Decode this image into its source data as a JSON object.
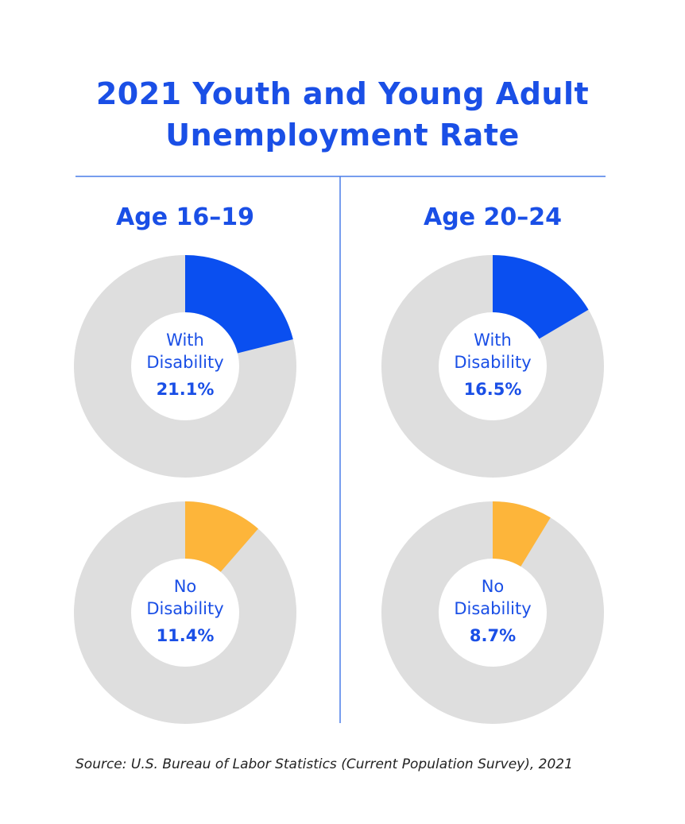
{
  "title": "2021 Youth and Young Adult Unemployment Rate",
  "columns": [
    "Age 16–19",
    "Age 20–24"
  ],
  "source": "Source: U.S. Bureau of Labor Statistics (Current Population Survey), 2021",
  "chart_data": [
    {
      "type": "pie",
      "label": "With Disability",
      "values": [
        21.1
      ],
      "value_labels": [
        "21.1%"
      ],
      "color": "#0a4ff0",
      "rest_color": "#dedede"
    },
    {
      "type": "pie",
      "label": "With Disability",
      "values": [
        16.5
      ],
      "value_labels": [
        "16.5%"
      ],
      "color": "#0a4ff0",
      "rest_color": "#dedede"
    },
    {
      "type": "pie",
      "label": "No Disability",
      "values": [
        11.4
      ],
      "value_labels": [
        "11.4%"
      ],
      "color": "#fdb53a",
      "rest_color": "#dedede"
    },
    {
      "type": "pie",
      "label": "No Disability",
      "values": [
        8.7
      ],
      "value_labels": [
        "8.7%"
      ],
      "color": "#fdb53a",
      "rest_color": "#dedede"
    }
  ]
}
